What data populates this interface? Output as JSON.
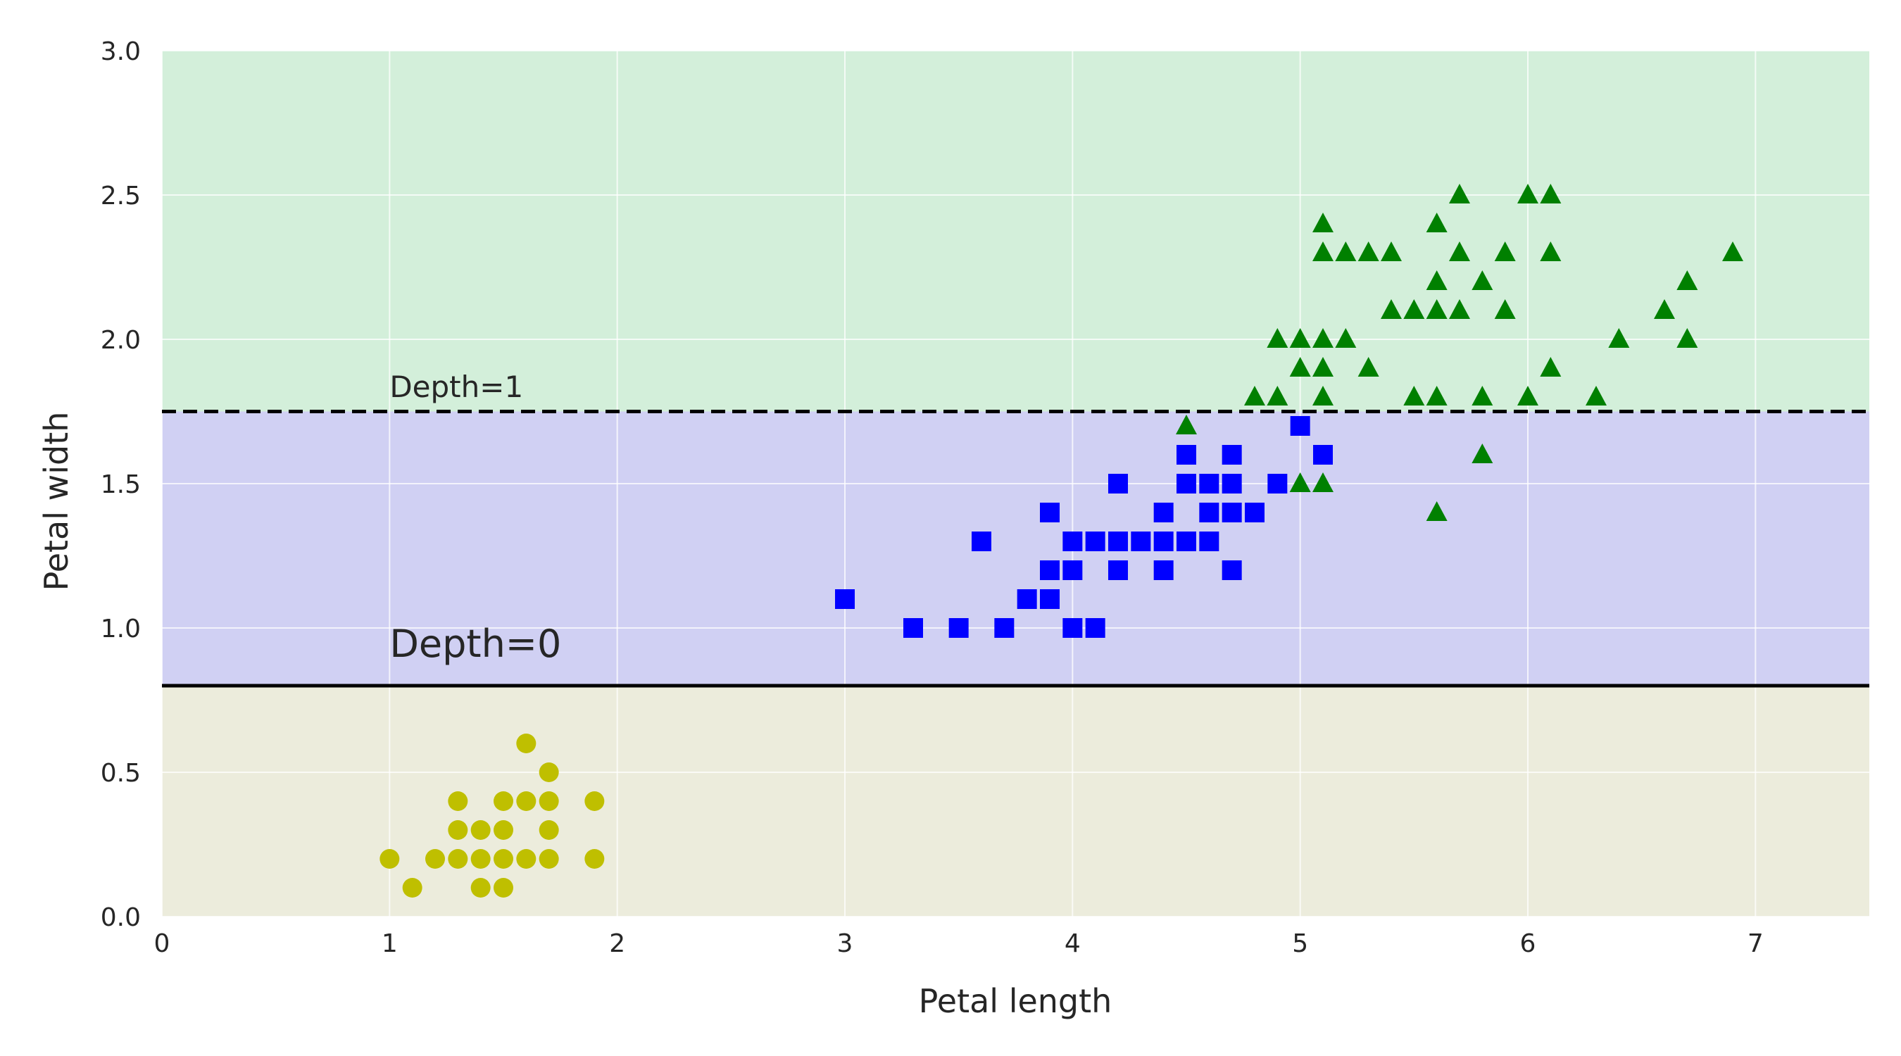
{
  "chart_data": {
    "type": "scatter",
    "title": "",
    "xlabel": "Petal length",
    "ylabel": "Petal width",
    "xlim": [
      0,
      7.5
    ],
    "ylim": [
      0,
      3
    ],
    "x_ticks": [
      0,
      1,
      2,
      3,
      4,
      5,
      6,
      7
    ],
    "x_tick_labels": [
      "0",
      "1",
      "2",
      "3",
      "4",
      "5",
      "6",
      "7"
    ],
    "y_ticks": [
      0,
      0.5,
      1,
      1.5,
      2,
      2.5,
      3
    ],
    "y_tick_labels": [
      "0.0",
      "0.5",
      "1.0",
      "1.5",
      "2.0",
      "2.5",
      "3.0"
    ],
    "grid": true,
    "regions": [
      {
        "y_from": 0,
        "y_to": 0.8,
        "color": "#ececdc"
      },
      {
        "y_from": 0.8,
        "y_to": 1.75,
        "color": "#d0d0f3"
      },
      {
        "y_from": 1.75,
        "y_to": 3,
        "color": "#d3efda"
      }
    ],
    "boundaries": [
      {
        "y": 0.8,
        "style": "solid",
        "color": "#000000"
      },
      {
        "y": 1.75,
        "style": "dashed",
        "color": "#000000"
      }
    ],
    "annotations": [
      {
        "text": "Depth=0",
        "x": 1.0,
        "y": 0.9,
        "size": "large"
      },
      {
        "text": "Depth=1",
        "x": 1.0,
        "y": 1.8,
        "size": "small"
      }
    ],
    "series": [
      {
        "marker": "circle",
        "color": "#bfbf00",
        "points": [
          [
            1.0,
            0.2
          ],
          [
            1.1,
            0.1
          ],
          [
            1.2,
            0.2
          ],
          [
            1.3,
            0.2
          ],
          [
            1.3,
            0.3
          ],
          [
            1.3,
            0.4
          ],
          [
            1.4,
            0.1
          ],
          [
            1.4,
            0.2
          ],
          [
            1.4,
            0.3
          ],
          [
            1.5,
            0.1
          ],
          [
            1.5,
            0.2
          ],
          [
            1.5,
            0.3
          ],
          [
            1.5,
            0.4
          ],
          [
            1.6,
            0.2
          ],
          [
            1.6,
            0.4
          ],
          [
            1.6,
            0.6
          ],
          [
            1.7,
            0.2
          ],
          [
            1.7,
            0.3
          ],
          [
            1.7,
            0.4
          ],
          [
            1.7,
            0.5
          ],
          [
            1.9,
            0.2
          ],
          [
            1.9,
            0.4
          ]
        ]
      },
      {
        "marker": "square",
        "color": "#0000ff",
        "points": [
          [
            3.0,
            1.1
          ],
          [
            3.3,
            1.0
          ],
          [
            3.5,
            1.0
          ],
          [
            3.6,
            1.3
          ],
          [
            3.7,
            1.0
          ],
          [
            3.8,
            1.1
          ],
          [
            3.9,
            1.1
          ],
          [
            3.9,
            1.2
          ],
          [
            3.9,
            1.4
          ],
          [
            4.0,
            1.0
          ],
          [
            4.0,
            1.2
          ],
          [
            4.0,
            1.3
          ],
          [
            4.1,
            1.0
          ],
          [
            4.1,
            1.3
          ],
          [
            4.2,
            1.2
          ],
          [
            4.2,
            1.3
          ],
          [
            4.2,
            1.5
          ],
          [
            4.3,
            1.3
          ],
          [
            4.4,
            1.2
          ],
          [
            4.4,
            1.3
          ],
          [
            4.4,
            1.4
          ],
          [
            4.5,
            1.3
          ],
          [
            4.5,
            1.5
          ],
          [
            4.5,
            1.6
          ],
          [
            4.6,
            1.3
          ],
          [
            4.6,
            1.4
          ],
          [
            4.6,
            1.5
          ],
          [
            4.7,
            1.2
          ],
          [
            4.7,
            1.4
          ],
          [
            4.7,
            1.5
          ],
          [
            4.7,
            1.6
          ],
          [
            4.8,
            1.4
          ],
          [
            4.9,
            1.5
          ],
          [
            5.0,
            1.7
          ],
          [
            5.1,
            1.6
          ]
        ]
      },
      {
        "marker": "triangle",
        "color": "#008000",
        "points": [
          [
            4.5,
            1.7
          ],
          [
            4.8,
            1.8
          ],
          [
            4.9,
            1.8
          ],
          [
            4.9,
            2.0
          ],
          [
            5.0,
            1.5
          ],
          [
            5.0,
            1.9
          ],
          [
            5.0,
            2.0
          ],
          [
            5.1,
            1.5
          ],
          [
            5.1,
            1.8
          ],
          [
            5.1,
            1.9
          ],
          [
            5.1,
            2.0
          ],
          [
            5.1,
            2.3
          ],
          [
            5.1,
            2.4
          ],
          [
            5.2,
            2.0
          ],
          [
            5.2,
            2.3
          ],
          [
            5.3,
            1.9
          ],
          [
            5.3,
            2.3
          ],
          [
            5.4,
            2.1
          ],
          [
            5.4,
            2.3
          ],
          [
            5.5,
            1.8
          ],
          [
            5.5,
            2.1
          ],
          [
            5.6,
            1.4
          ],
          [
            5.6,
            1.8
          ],
          [
            5.6,
            2.1
          ],
          [
            5.6,
            2.2
          ],
          [
            5.6,
            2.4
          ],
          [
            5.7,
            2.1
          ],
          [
            5.7,
            2.3
          ],
          [
            5.7,
            2.5
          ],
          [
            5.8,
            1.6
          ],
          [
            5.8,
            1.8
          ],
          [
            5.8,
            2.2
          ],
          [
            5.9,
            2.1
          ],
          [
            5.9,
            2.3
          ],
          [
            6.0,
            1.8
          ],
          [
            6.0,
            2.5
          ],
          [
            6.1,
            1.9
          ],
          [
            6.1,
            2.3
          ],
          [
            6.1,
            2.5
          ],
          [
            6.3,
            1.8
          ],
          [
            6.4,
            2.0
          ],
          [
            6.6,
            2.1
          ],
          [
            6.7,
            2.0
          ],
          [
            6.7,
            2.2
          ],
          [
            6.9,
            2.3
          ]
        ]
      }
    ]
  }
}
